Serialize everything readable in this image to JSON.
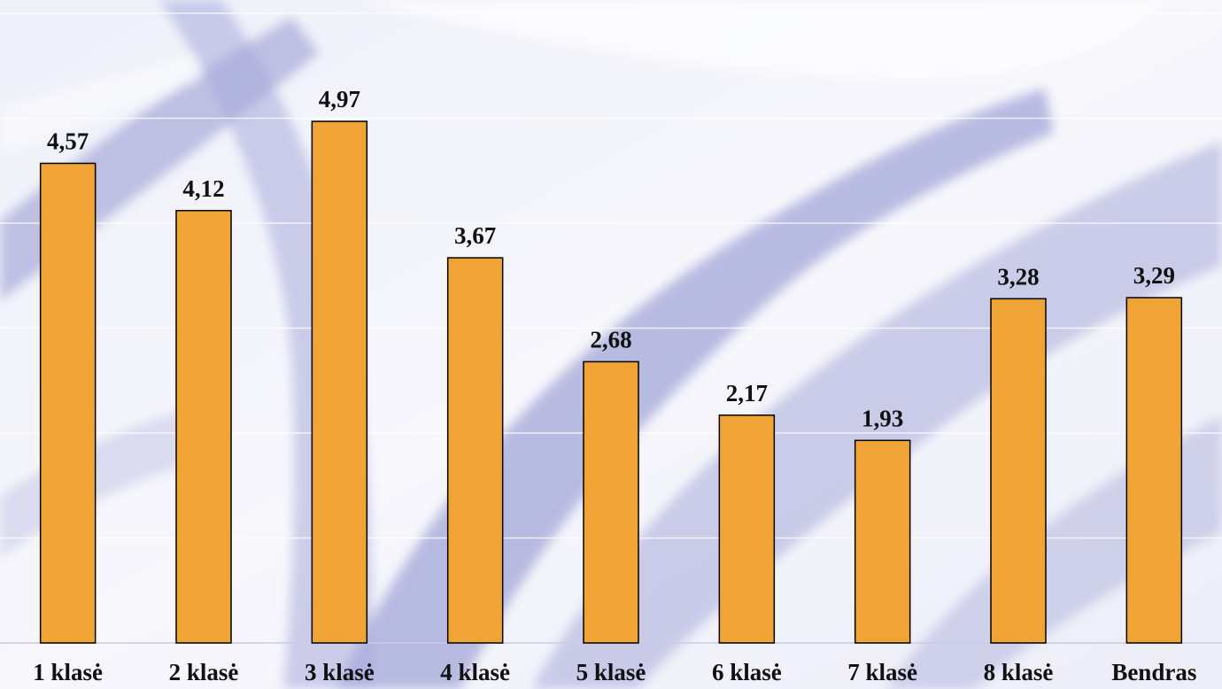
{
  "chart_data": {
    "type": "bar",
    "categories": [
      "1 klasė",
      "2 klasė",
      "3 klasė",
      "4 klasė",
      "5 klasė",
      "6 klasė",
      "7 klasė",
      "8 klasė",
      "Bendras"
    ],
    "values": [
      4.57,
      4.12,
      4.97,
      3.67,
      2.68,
      2.17,
      1.93,
      3.28,
      3.29
    ],
    "value_labels": [
      "4,57",
      "4,12",
      "4,97",
      "3,67",
      "2,68",
      "2,17",
      "1,93",
      "3,28",
      "3,29"
    ],
    "title": "",
    "xlabel": "",
    "ylabel": "",
    "ylim": [
      0,
      6
    ],
    "grid": true,
    "legend": "none",
    "bar_color": "#F0A436",
    "bar_edge_color": "#000000"
  },
  "background": {
    "base_color": "#f4f5fb",
    "stroke_color": "#8e93cf"
  }
}
